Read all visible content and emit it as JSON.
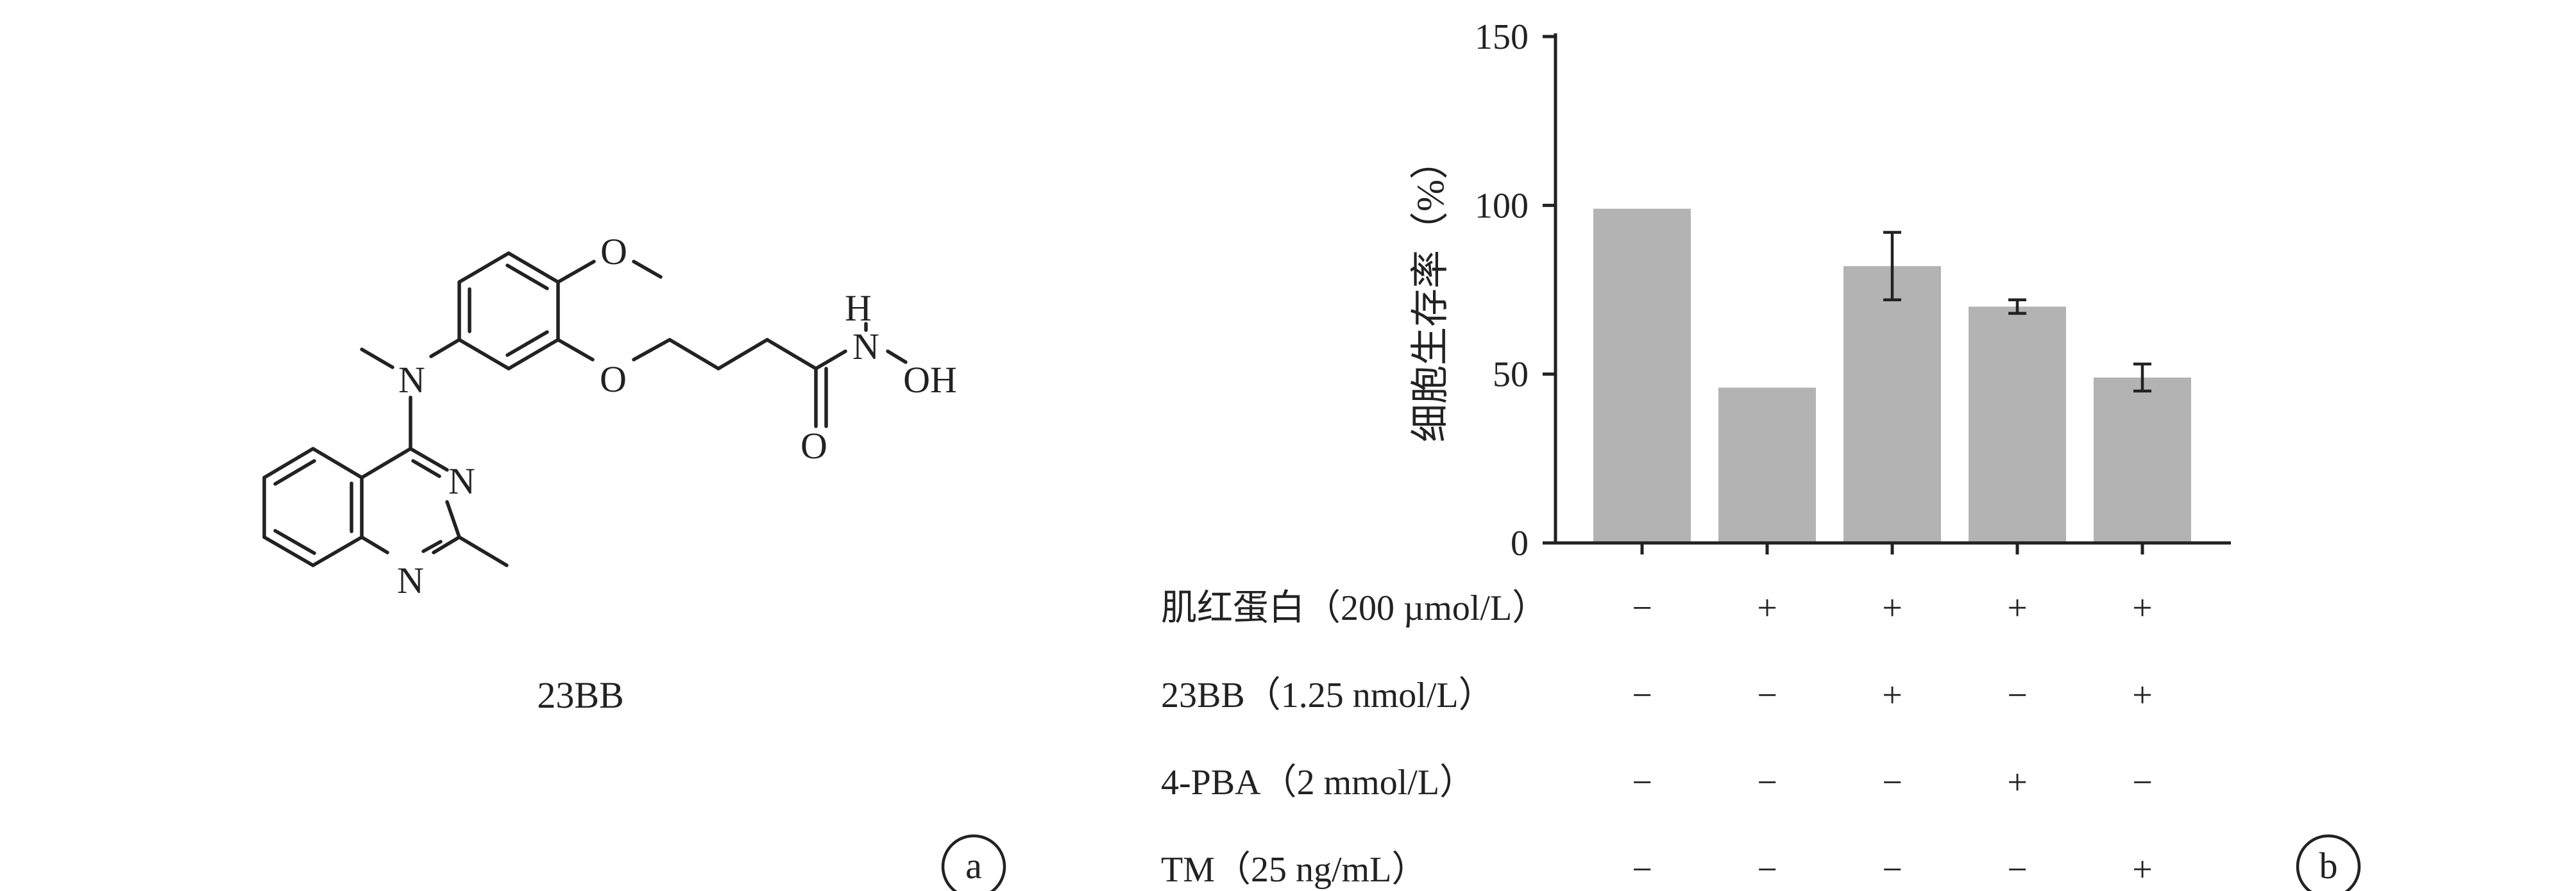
{
  "panel_a": {
    "compound_label": "23BB",
    "panel_letter": "a",
    "atoms": {
      "O_methoxy": "O",
      "N_amine": "N",
      "O_ether": "O",
      "H_hydroxamic": "H",
      "N_hydroxamic": "N",
      "OH": "OH",
      "O_carbonyl": "O",
      "N_ring_3": "N",
      "N_ring_1": "N"
    }
  },
  "panel_b": {
    "panel_letter": "b",
    "bar_color": "#b3b3b3",
    "condition_rows": [
      {
        "label": "肌红蛋白（200 µmol/L）",
        "signs": [
          "−",
          "+",
          "+",
          "+",
          "+"
        ]
      },
      {
        "label": "23BB（1.25 nmol/L）",
        "signs": [
          "−",
          "−",
          "+",
          "−",
          "+"
        ]
      },
      {
        "label": "4-PBA（2 mmol/L）",
        "signs": [
          "−",
          "−",
          "−",
          "+",
          "−"
        ]
      },
      {
        "label": "TM（25 ng/mL）",
        "signs": [
          "−",
          "−",
          "−",
          "−",
          "+"
        ]
      }
    ]
  },
  "chart_data": {
    "type": "bar",
    "title": "",
    "xlabel": "",
    "ylabel": "细胞生存率（%）",
    "ylim": [
      0,
      150
    ],
    "yticks": [
      0,
      50,
      100,
      150
    ],
    "ytick_labels": [
      "0",
      "50",
      "100",
      "150"
    ],
    "grid": false,
    "values": [
      99,
      46,
      82,
      70,
      49
    ],
    "errors": [
      null,
      null,
      10,
      2,
      4
    ]
  }
}
